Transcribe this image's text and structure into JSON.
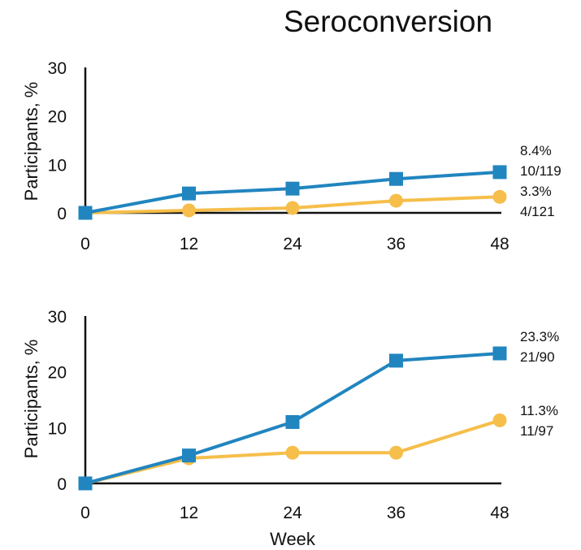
{
  "title": "Seroconversion",
  "colors": {
    "blue": "#2185BF",
    "yellow": "#F6BE4A",
    "axis": "#111111"
  },
  "chart_data": [
    {
      "type": "line",
      "x": [
        0,
        12,
        24,
        36,
        48
      ],
      "xticks": [
        "0",
        "12",
        "24",
        "36",
        "48"
      ],
      "yticks": [
        "0",
        "10",
        "20",
        "30"
      ],
      "ylim": [
        0,
        30
      ],
      "ylabel": "Participants, %",
      "xlabel": "",
      "grid": false,
      "series": [
        {
          "color": "#2185BF",
          "marker": "square",
          "values": [
            0,
            4.0,
            5.0,
            7.0,
            8.4
          ]
        },
        {
          "color": "#F6BE4A",
          "marker": "circle",
          "values": [
            0,
            0.5,
            1.0,
            2.5,
            3.3
          ]
        }
      ],
      "annotations": [
        "8.4%",
        "10/119",
        "3.3%",
        "4/121"
      ]
    },
    {
      "type": "line",
      "x": [
        0,
        12,
        24,
        36,
        48
      ],
      "xticks": [
        "0",
        "12",
        "24",
        "36",
        "48"
      ],
      "yticks": [
        "0",
        "10",
        "20",
        "30"
      ],
      "ylim": [
        0,
        30
      ],
      "ylabel": "Participants, %",
      "xlabel": "Week",
      "grid": false,
      "series": [
        {
          "color": "#2185BF",
          "marker": "square",
          "values": [
            0,
            5.0,
            11.0,
            22.0,
            23.3
          ]
        },
        {
          "color": "#F6BE4A",
          "marker": "circle",
          "values": [
            0,
            4.5,
            5.5,
            5.5,
            11.3
          ]
        }
      ],
      "annotations": [
        "23.3%",
        "21/90",
        "11.3%",
        "11/97"
      ]
    }
  ]
}
